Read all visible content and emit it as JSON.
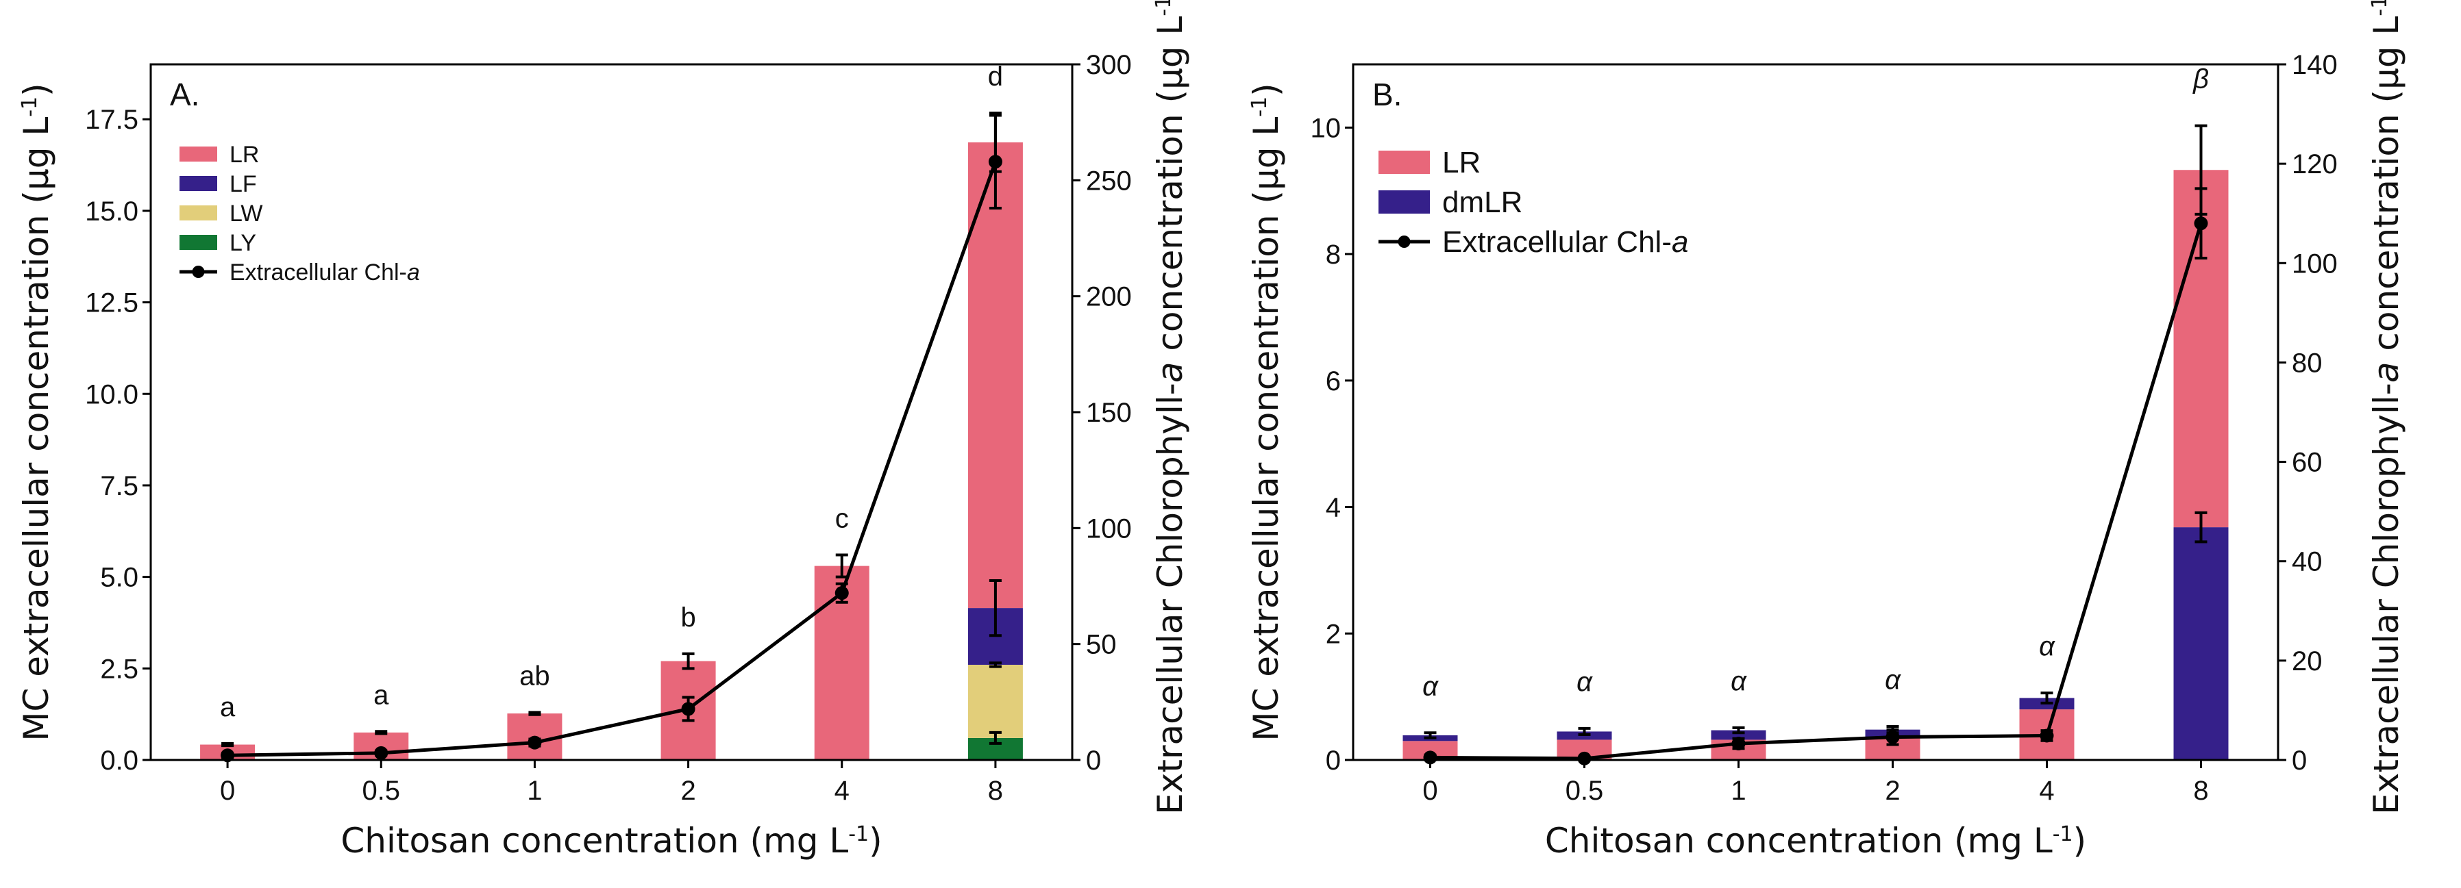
{
  "chart_data": [
    {
      "panel_label": "A.",
      "type": "bar",
      "stacked": true,
      "categories": [
        "0",
        "0.5",
        "1",
        "2",
        "4",
        "8"
      ],
      "xlabel": {
        "text": "Chitosan concentration (mg L",
        "sup": "-1",
        "end": ")"
      },
      "ylabel": {
        "text": "MC extracellular concentration (μg L",
        "sup": "-1",
        "end": ")"
      },
      "y2label": {
        "pre": "Extracellular Chlorophyll-",
        "italic": "a",
        "text": " concentration (μg L",
        "sup": "-1",
        "end": ")"
      },
      "ylim": [
        0,
        19
      ],
      "yticks": [
        "0.0",
        "2.5",
        "5.0",
        "7.5",
        "10.0",
        "12.5",
        "15.0",
        "17.5"
      ],
      "y2lim": [
        0,
        300
      ],
      "y2ticks": [
        "0",
        "50",
        "100",
        "150",
        "200",
        "250",
        "300"
      ],
      "stack_order_bottom_up": [
        [
          "LR"
        ],
        [
          "LR"
        ],
        [
          "LR"
        ],
        [
          "LR"
        ],
        [
          "LR"
        ],
        [
          "LY",
          "LW",
          "LF",
          "LR"
        ]
      ],
      "series": [
        {
          "name": "LR",
          "color": "#e8677a",
          "values": [
            0.42,
            0.75,
            1.27,
            2.7,
            5.3,
            12.72
          ],
          "errors": [
            0.03,
            0.03,
            0.03,
            0.2,
            0.3,
            0.8
          ]
        },
        {
          "name": "LF",
          "color": "#35208a",
          "values": [
            0,
            0,
            0,
            0,
            0,
            1.55
          ],
          "errors": [
            null,
            null,
            null,
            null,
            null,
            0.75
          ]
        },
        {
          "name": "LW",
          "color": "#e2ce7a",
          "values": [
            0,
            0,
            0,
            0,
            0,
            2.0
          ],
          "errors": [
            null,
            null,
            null,
            null,
            null,
            0.05
          ]
        },
        {
          "name": "LY",
          "color": "#117733",
          "values": [
            0,
            0,
            0,
            0,
            0,
            0.6
          ],
          "errors": [
            null,
            null,
            null,
            null,
            null,
            0.15
          ]
        }
      ],
      "line": {
        "name": "Extracellular Chl-",
        "name_italic": "a",
        "axis": "right",
        "color": "#000000",
        "values": [
          2,
          3,
          7.5,
          22,
          72,
          258
        ],
        "errors": [
          1,
          1,
          1.5,
          5,
          4,
          20
        ]
      },
      "annotations": [
        "a",
        "a",
        "ab",
        "b",
        "c",
        "d"
      ],
      "legend_position": "top-left",
      "grid": false
    },
    {
      "panel_label": "B.",
      "type": "bar",
      "stacked": true,
      "categories": [
        "0",
        "0.5",
        "1",
        "2",
        "4",
        "8"
      ],
      "xlabel": {
        "text": "Chitosan concentration (mg L",
        "sup": "-1",
        "end": ")"
      },
      "ylabel": {
        "text": "MC extracellular concentration (μg L",
        "sup": "-1",
        "end": ")"
      },
      "y2label": {
        "pre": "Extracellular Chlorophyll-",
        "italic": "a",
        "text": " concentration (μg L",
        "sup": "-1",
        "end": ")"
      },
      "ylim": [
        0,
        11
      ],
      "yticks": [
        "0",
        "2",
        "4",
        "6",
        "8",
        "10"
      ],
      "y2lim": [
        0,
        140
      ],
      "y2ticks": [
        "0",
        "20",
        "40",
        "60",
        "80",
        "100",
        "120",
        "140"
      ],
      "stack_order_bottom_up": [
        [
          "LR",
          "dmLR"
        ],
        [
          "LR",
          "dmLR"
        ],
        [
          "LR",
          "dmLR"
        ],
        [
          "LR",
          "dmLR"
        ],
        [
          "LR",
          "dmLR"
        ],
        [
          "dmLR",
          "LR"
        ]
      ],
      "series": [
        {
          "name": "LR",
          "color": "#e8677a",
          "values": [
            0.3,
            0.32,
            0.32,
            0.35,
            0.8,
            5.65
          ],
          "errors": [
            null,
            null,
            null,
            null,
            null,
            0.7
          ]
        },
        {
          "name": "dmLR",
          "color": "#35208a",
          "values": [
            0.09,
            0.13,
            0.15,
            0.13,
            0.18,
            3.68
          ],
          "errors": [
            0.04,
            0.05,
            0.04,
            0.05,
            0.08,
            0.23
          ]
        }
      ],
      "line": {
        "name": "Extracellular Chl-",
        "name_italic": "a",
        "axis": "right",
        "color": "#000000",
        "values": [
          0.5,
          0.3,
          3.3,
          4.6,
          4.9,
          108
        ],
        "errors": [
          0.5,
          0.3,
          1,
          1.5,
          1,
          7
        ]
      },
      "annotations": [
        "α",
        "α",
        "α",
        "α",
        "α",
        "β"
      ],
      "legend_position": "top-left",
      "grid": false
    }
  ]
}
